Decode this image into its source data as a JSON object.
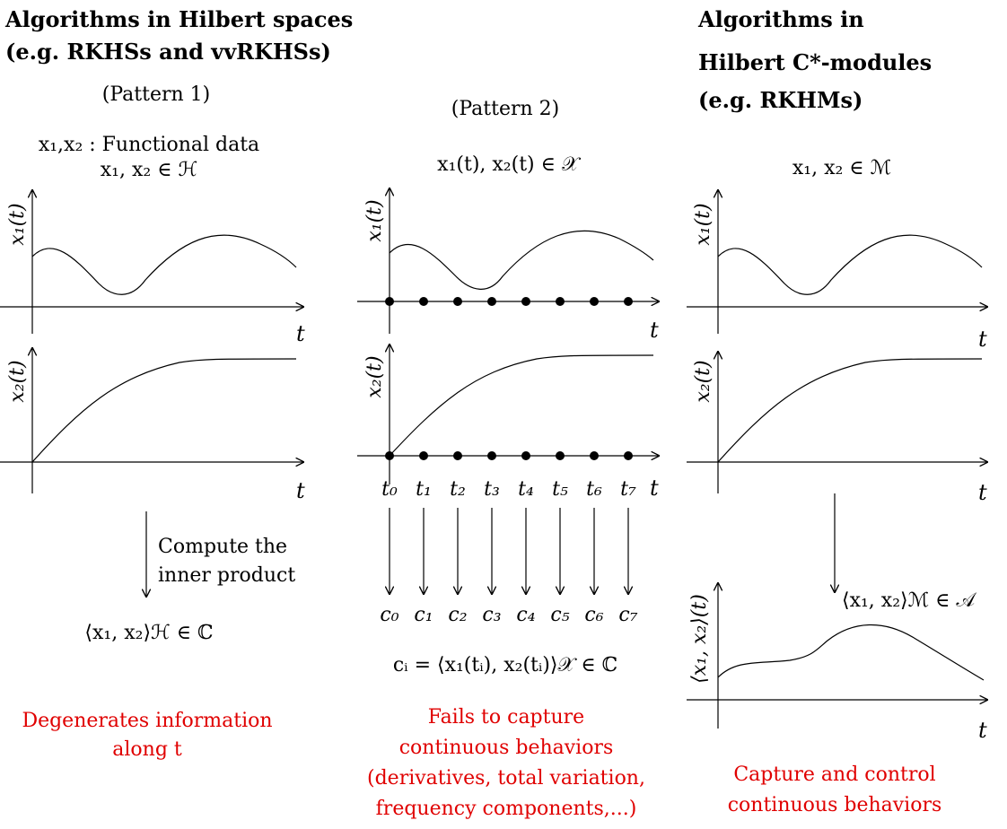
{
  "columns": {
    "left": {
      "heading_1": "Algorithms in Hilbert spaces",
      "heading_2": "(e.g. RKHSs and vvRKHSs)",
      "pattern": "(Pattern 1)",
      "data_desc": "x₁,x₂ : Functional data",
      "membership": "x₁, x₂ ∈ ℋ",
      "arrow_label_1": "Compute the",
      "arrow_label_2": "inner product",
      "result": "⟨x₁, x₂⟩ℋ ∈ ℂ",
      "note_1": "Degenerates information",
      "note_2": "along t"
    },
    "middle": {
      "pattern": "(Pattern 2)",
      "membership": "x₁(t), x₂(t) ∈ 𝒳",
      "sample_labels": [
        "t₀",
        "t₁",
        "t₂",
        "t₃",
        "t₄",
        "t₅",
        "t₆",
        "t₇"
      ],
      "coef_labels": [
        "c₀",
        "c₁",
        "c₂",
        "c₃",
        "c₄",
        "c₅",
        "c₆",
        "c₇"
      ],
      "formula": "cᵢ = ⟨x₁(tᵢ), x₂(tᵢ)⟩𝒳 ∈ ℂ",
      "note_1": "Fails to capture",
      "note_2": "continuous behaviors",
      "note_3": "(derivatives, total variation,",
      "note_4": "frequency components,...)"
    },
    "right": {
      "heading_1": "Algorithms in",
      "heading_2": "Hilbert C*-modules",
      "heading_3": "(e.g. RKHMs)",
      "membership": "x₁, x₂ ∈ ℳ",
      "result": "⟨x₁, x₂⟩ℳ ∈ 𝒜",
      "y3_label": "⟨x₁, x₂⟩(t)",
      "note_1": "Capture and control",
      "note_2": "continuous behaviors"
    }
  },
  "axes": {
    "x_label": "t",
    "y1_label": "x₁(t)",
    "y2_label": "x₂(t)"
  },
  "colors": {
    "text": "#000000",
    "highlight": "#e00000"
  }
}
